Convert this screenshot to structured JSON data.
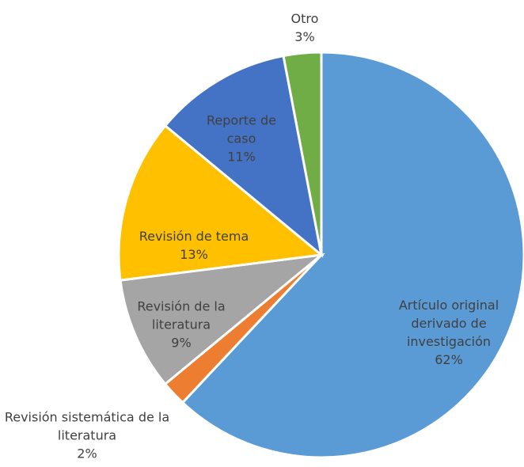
{
  "chart_data": {
    "type": "pie",
    "categories": [
      "Artículo original derivado de investigación",
      "Revisión sistemática de la literatura",
      "Revisión de la literatura",
      "Revisión de tema",
      "Reporte de caso",
      "Otro"
    ],
    "values": [
      62,
      2,
      9,
      13,
      11,
      3
    ],
    "value_labels": [
      "62%",
      "2%",
      "9%",
      "13%",
      "11%",
      "3%"
    ],
    "colors": [
      "#5b9bd5",
      "#ed7d31",
      "#a5a5a5",
      "#ffc000",
      "#4472c4",
      "#70ad47"
    ]
  }
}
